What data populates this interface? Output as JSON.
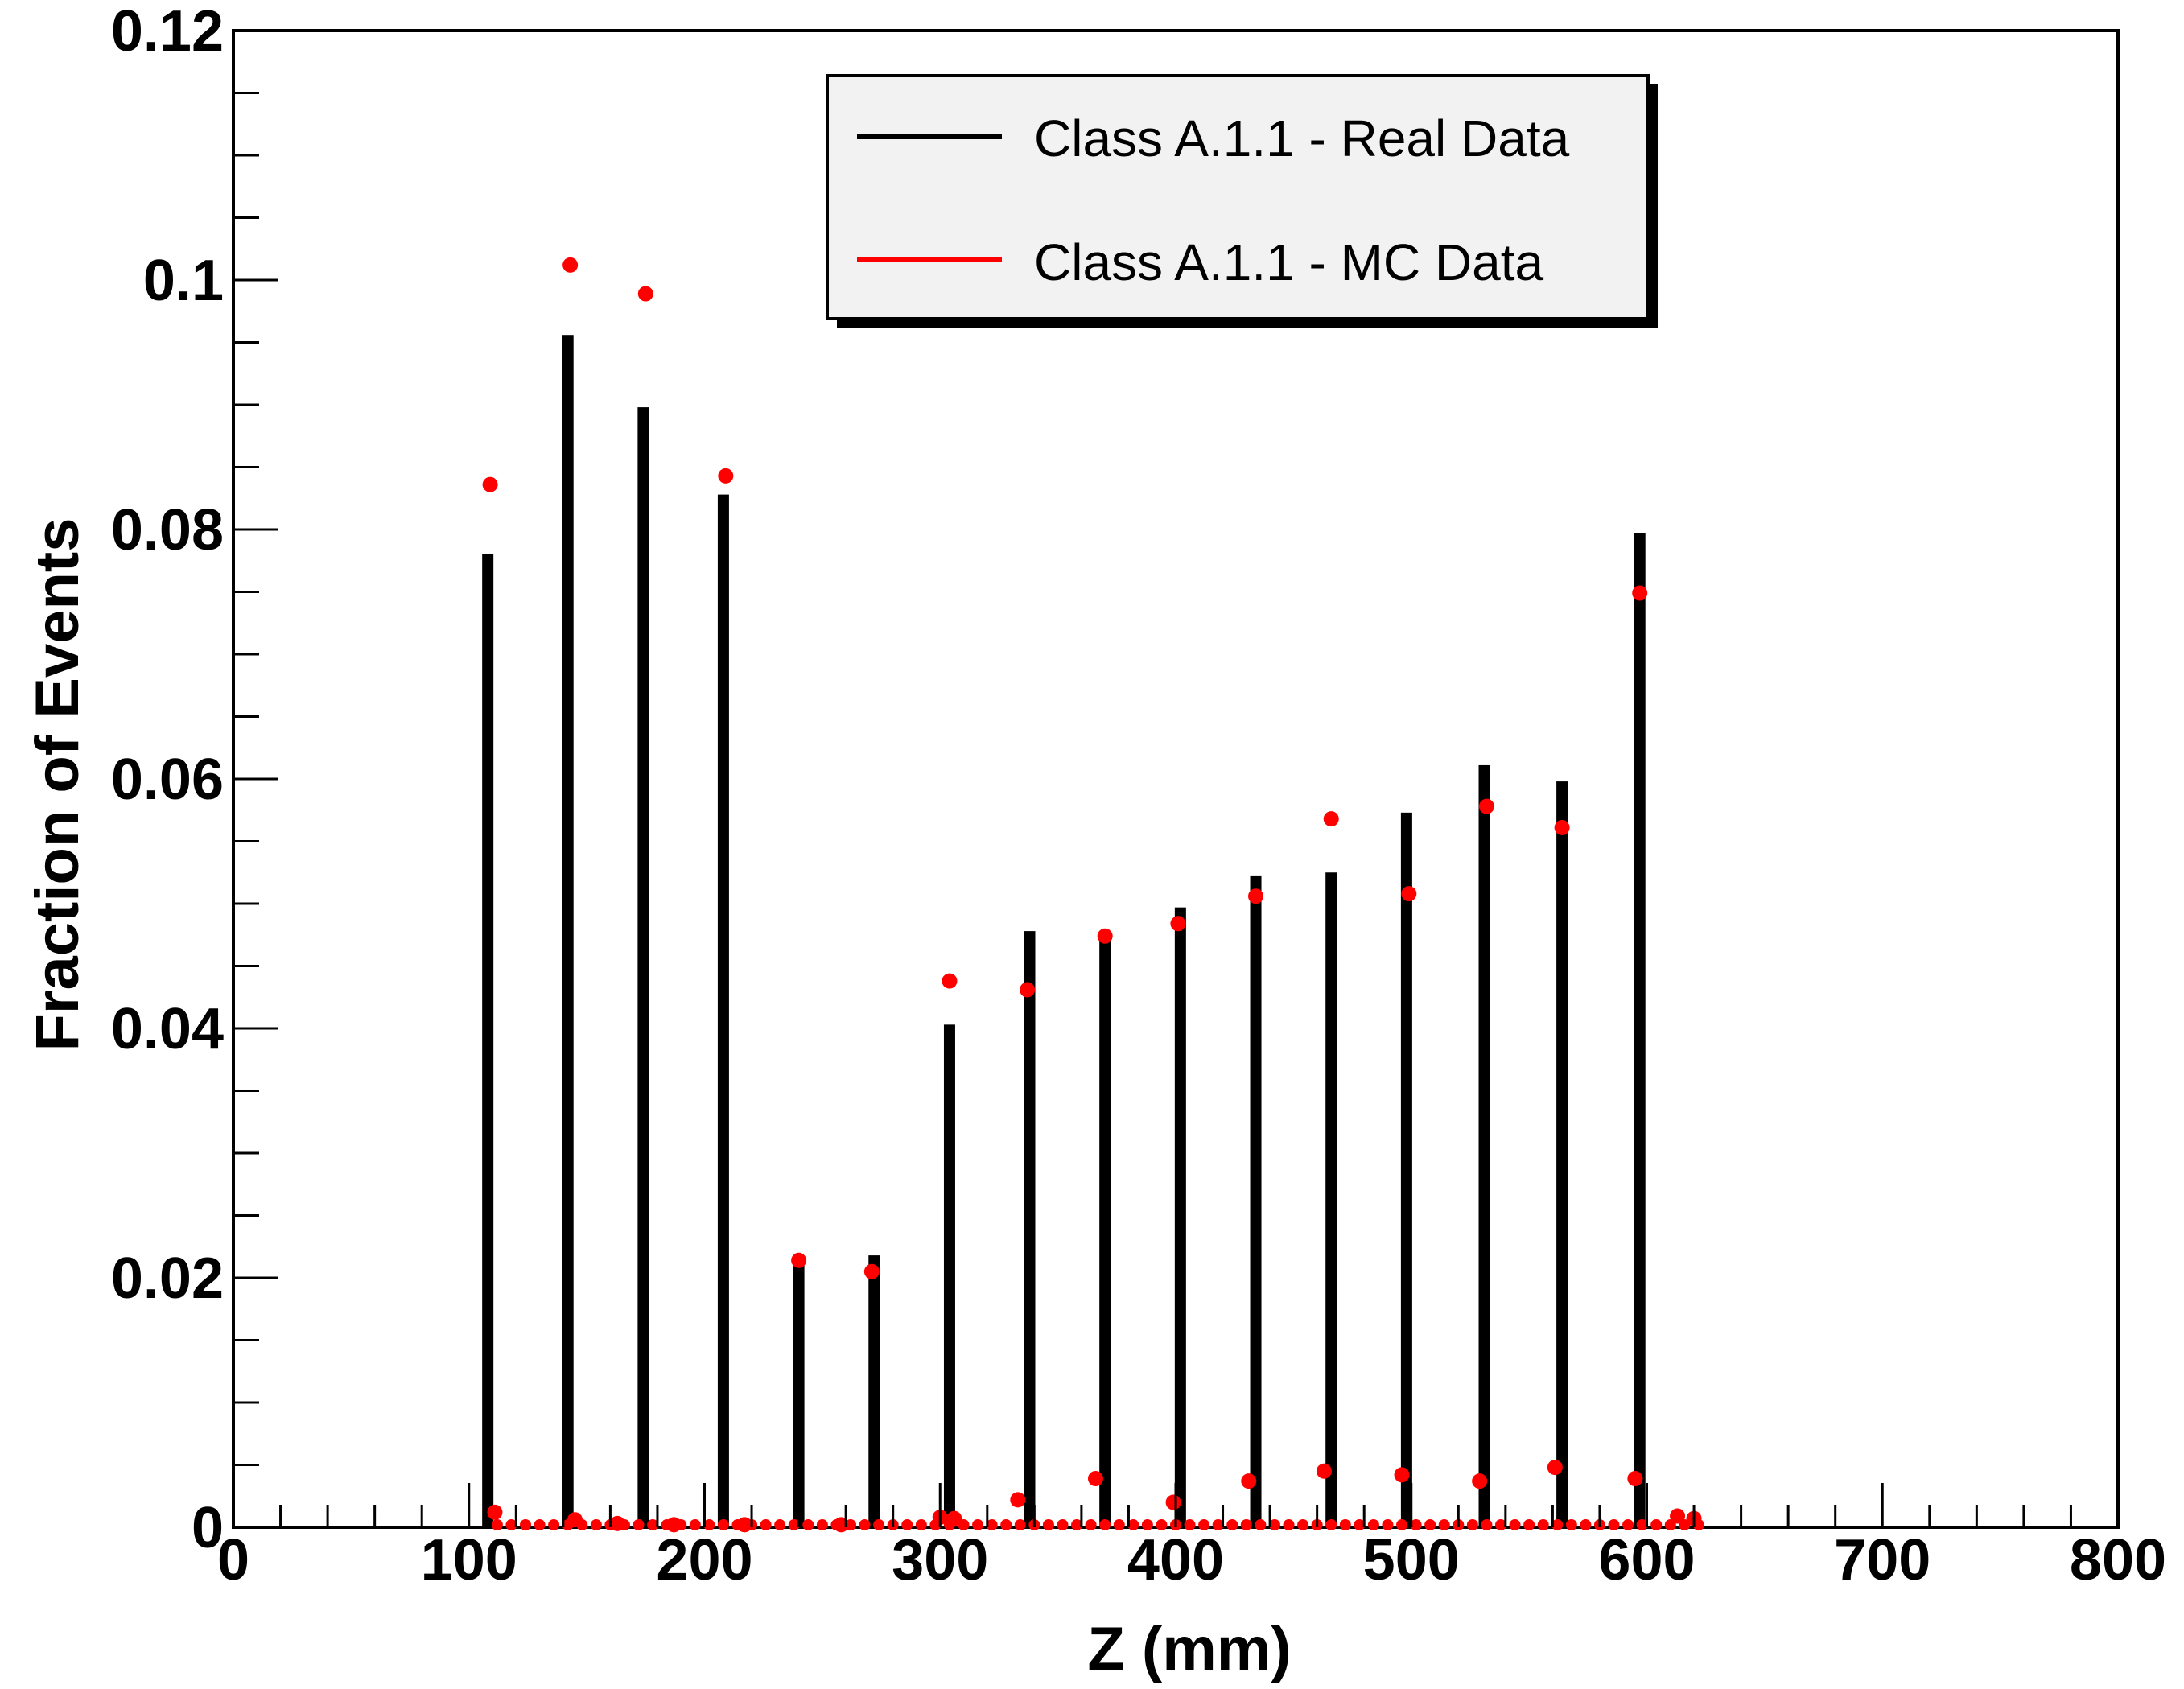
{
  "chart_data": {
    "type": "bar",
    "title": "",
    "xlabel": "Z (mm)",
    "ylabel": "Fraction of Events",
    "xlim": [
      0,
      800
    ],
    "ylim": [
      0,
      0.12
    ],
    "x_ticks": [
      0,
      100,
      200,
      300,
      400,
      500,
      600,
      700,
      800
    ],
    "x_tick_labels": [
      "0",
      "100",
      "200",
      "300",
      "400",
      "500",
      "600",
      "700",
      "800"
    ],
    "y_ticks": [
      0,
      0.02,
      0.04,
      0.06,
      0.08,
      0.1,
      0.12
    ],
    "y_tick_labels": [
      "0",
      "0.02",
      "0.04",
      "0.06",
      "0.08",
      "0.1",
      "0.12"
    ],
    "grid": false,
    "legend_position": "top-center",
    "legend": [
      {
        "label": "Class A.1.1 - Real Data",
        "color": "#000000"
      },
      {
        "label": "Class A.1.1 - MC Data",
        "color": "#ff0000"
      }
    ],
    "series": [
      {
        "name": "Class A.1.1 - Real Data",
        "style": "histogram",
        "color": "#000000",
        "x": [
          108,
          142,
          174,
          208,
          240,
          272,
          304,
          338,
          370,
          402,
          434,
          466,
          498,
          531,
          564,
          597
        ],
        "values": [
          0.078,
          0.0956,
          0.0898,
          0.0828,
          0.0215,
          0.0218,
          0.0403,
          0.0478,
          0.0475,
          0.0497,
          0.0522,
          0.0525,
          0.0573,
          0.0611,
          0.0598,
          0.0797
        ]
      },
      {
        "name": "Class A.1.1 - MC Data",
        "style": "markers",
        "color": "#ff0000",
        "x": [
          109,
          143,
          175,
          209,
          240,
          271,
          304,
          337,
          370,
          401,
          434,
          466,
          499,
          532,
          564,
          597,
          111,
          145,
          163,
          187,
          217,
          258,
          300,
          306,
          333,
          366,
          399,
          431,
          463,
          496,
          529,
          561,
          595,
          613,
          620
        ],
        "values": [
          0.0836,
          0.1012,
          0.0989,
          0.0843,
          0.0214,
          0.0205,
          0.0438,
          0.0431,
          0.0474,
          0.0484,
          0.0506,
          0.0568,
          0.0508,
          0.0578,
          0.0561,
          0.0749,
          0.0012,
          0.0006,
          0.0003,
          0.0002,
          0.0002,
          0.0002,
          0.0008,
          0.0007,
          0.0022,
          0.0039,
          0.002,
          0.0037,
          0.0045,
          0.0042,
          0.0037,
          0.0048,
          0.0039,
          0.0009,
          0.0007
        ]
      }
    ]
  }
}
